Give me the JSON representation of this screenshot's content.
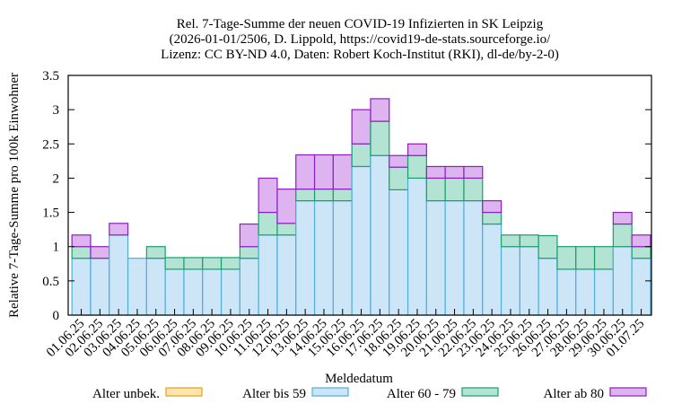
{
  "chart_data": {
    "type": "bar",
    "stacked": true,
    "title_lines": [
      "Rel. 7-Tage-Summe der neuen COVID-19 Infizierten in SK Leipzig",
      "(2026-01-01/2506, D. Lippold, https://covid19-de-stats.sourceforge.io/",
      "Lizenz: CC BY-ND 4.0, Daten: Robert Koch-Institut (RKI), dl-de/by-2-0)"
    ],
    "xlabel": "Meldedatum",
    "ylabel": "Relative 7-Tage-Summe pro 100k Einwohner",
    "ylim": [
      0,
      3.5
    ],
    "yticks": [
      "0",
      "0.5",
      "1",
      "1.5",
      "2",
      "2.5",
      "3",
      "3.5"
    ],
    "grid": false,
    "legend_position": "bottom",
    "categories": [
      "01.06.25",
      "02.06.25",
      "03.06.25",
      "04.06.25",
      "05.06.25",
      "06.06.25",
      "07.06.25",
      "08.06.25",
      "09.06.25",
      "10.06.25",
      "11.06.25",
      "12.06.25",
      "13.06.25",
      "14.06.25",
      "15.06.25",
      "16.06.25",
      "17.06.25",
      "18.06.25",
      "19.06.25",
      "20.06.25",
      "21.06.25",
      "22.06.25",
      "23.06.25",
      "24.06.25",
      "25.06.25",
      "26.06.25",
      "27.06.25",
      "28.06.25",
      "29.06.25",
      "30.06.25",
      "01.07.25"
    ],
    "series": [
      {
        "name": "Alter unbek.",
        "fill": "#fde4b0",
        "stroke": "#e8a010",
        "values": [
          0,
          0,
          0,
          0,
          0,
          0,
          0,
          0,
          0,
          0,
          0,
          0,
          0,
          0,
          0,
          0,
          0,
          0,
          0,
          0,
          0,
          0,
          0,
          0,
          0,
          0,
          0,
          0,
          0,
          0,
          0
        ]
      },
      {
        "name": "Alter bis 59",
        "fill": "#cce6f8",
        "stroke": "#4faedc",
        "values": [
          0.83,
          0.83,
          1.17,
          0.83,
          0.83,
          0.67,
          0.67,
          0.67,
          0.67,
          0.83,
          1.17,
          1.17,
          1.67,
          1.67,
          1.67,
          2.17,
          2.33,
          1.83,
          2.0,
          1.67,
          1.67,
          1.67,
          1.33,
          1.0,
          1.0,
          0.83,
          0.67,
          0.67,
          0.67,
          1.0,
          0.83
        ]
      },
      {
        "name": "Alter 60 - 79",
        "fill": "#b3e3d3",
        "stroke": "#1a9e6e",
        "values": [
          0.17,
          0,
          0,
          0,
          0.17,
          0.17,
          0.17,
          0.17,
          0.17,
          0.17,
          0.33,
          0.17,
          0.17,
          0.17,
          0.17,
          0.33,
          0.5,
          0.33,
          0.33,
          0.33,
          0.33,
          0.33,
          0.17,
          0.17,
          0.17,
          0.33,
          0.33,
          0.33,
          0.33,
          0.33,
          0.17
        ]
      },
      {
        "name": "Alter ab 80",
        "fill": "#ddb3f0",
        "stroke": "#8b1fc0",
        "values": [
          0.17,
          0.17,
          0.17,
          0,
          0,
          0,
          0,
          0,
          0,
          0.33,
          0.5,
          0.5,
          0.5,
          0.5,
          0.5,
          0.5,
          0.33,
          0.17,
          0.17,
          0.17,
          0.17,
          0.17,
          0.17,
          0,
          0,
          0,
          0,
          0,
          0,
          0.17,
          0.17
        ]
      }
    ]
  }
}
